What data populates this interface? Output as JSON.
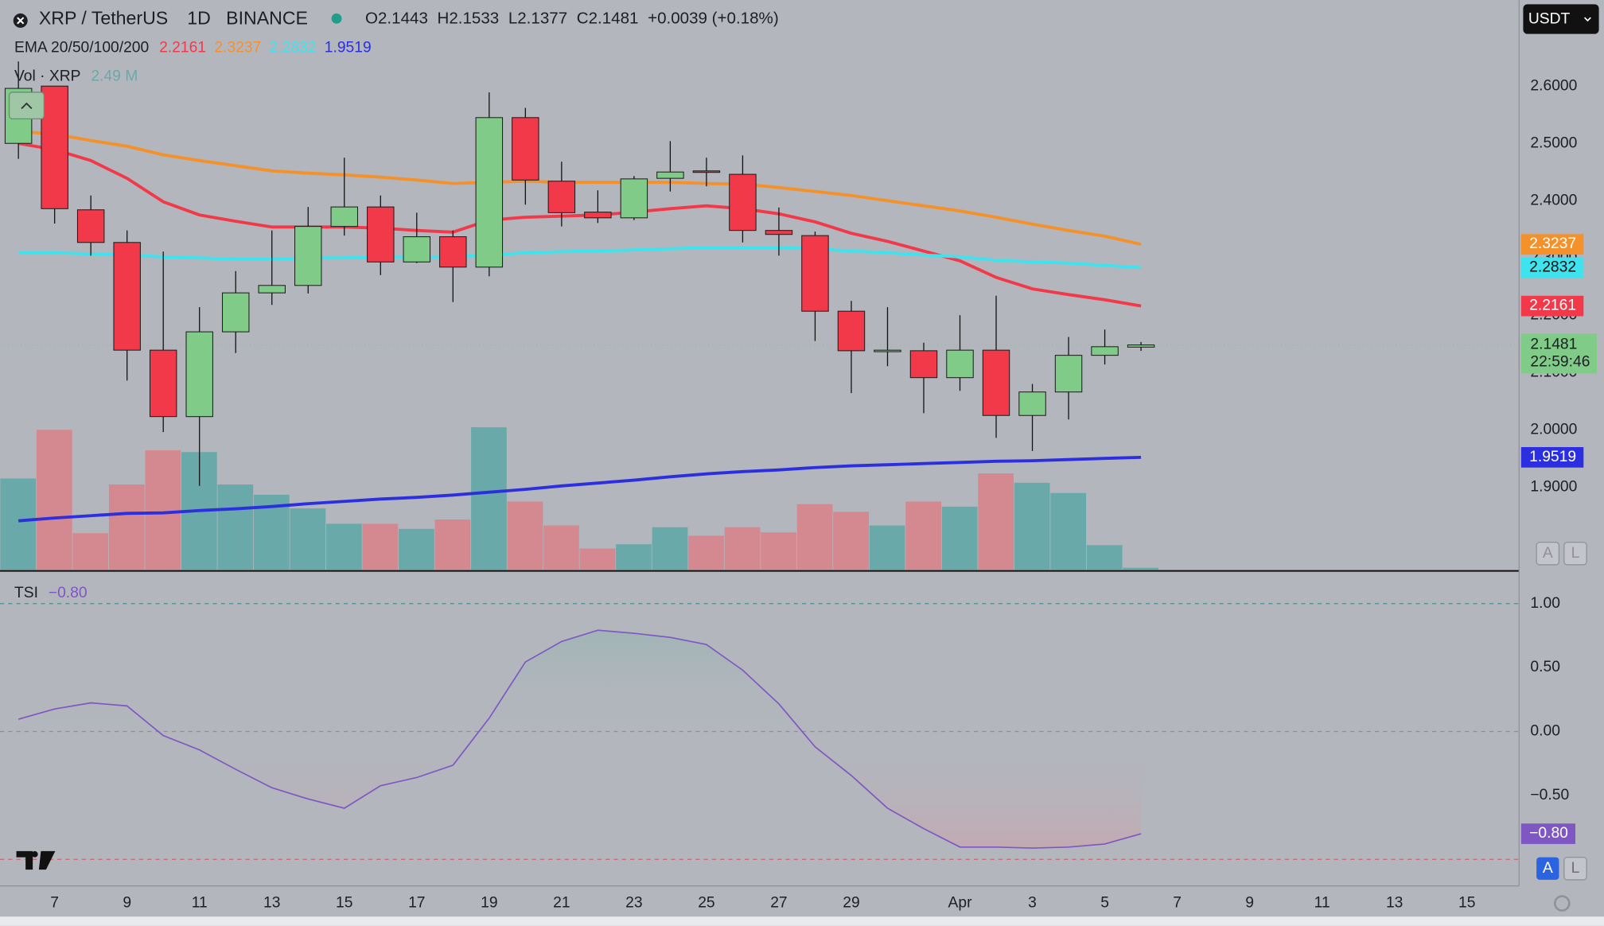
{
  "header": {
    "symbol": "XRP / TetherUS",
    "interval": "1D",
    "exchange": "BINANCE",
    "ohlc_labels": [
      "O",
      "H",
      "L",
      "C"
    ],
    "change": "+0.0039 (+0.18%)",
    "currency": "USDT",
    "countdown": "22:59:46",
    "scale_buttons": [
      "A",
      "L"
    ]
  },
  "chart_data": [
    {
      "type": "candlestick",
      "categories": [
        null,
        "7",
        null,
        "9",
        null,
        "11",
        null,
        "13",
        null,
        "15",
        null,
        "17",
        null,
        "19",
        null,
        "21",
        null,
        "23",
        null,
        "25",
        null,
        "27",
        null,
        "29",
        null,
        null,
        "Apr",
        null,
        "3",
        null,
        "5",
        null,
        "7",
        null,
        "9",
        null,
        "11",
        null,
        "13",
        null,
        "15",
        null
      ],
      "open": [
        2.5,
        2.6,
        2.384,
        2.327,
        2.139,
        2.023,
        2.171,
        2.239,
        2.252,
        2.355,
        2.389,
        2.293,
        2.337,
        2.284,
        2.545,
        2.434,
        2.38,
        2.37,
        2.439,
        2.452,
        2.446,
        2.348,
        2.339,
        2.207,
        2.138,
        2.138,
        2.091,
        2.139,
        2.025,
        2.066,
        2.13,
        2.1443,
        null,
        null,
        null,
        null,
        null,
        null,
        null,
        null,
        null,
        null
      ],
      "high": [
        2.643,
        2.6,
        2.409,
        2.348,
        2.311,
        2.214,
        2.277,
        2.348,
        2.389,
        2.475,
        2.409,
        2.379,
        2.348,
        2.589,
        2.562,
        2.468,
        2.418,
        2.443,
        2.504,
        2.475,
        2.479,
        2.388,
        2.346,
        2.225,
        2.214,
        2.152,
        2.2,
        2.234,
        2.08,
        2.162,
        2.175,
        2.1533,
        null,
        null,
        null,
        null,
        null,
        null,
        null,
        null,
        null,
        null
      ],
      "low": [
        2.473,
        2.36,
        2.304,
        2.086,
        1.996,
        1.902,
        2.134,
        2.218,
        2.238,
        2.339,
        2.27,
        2.291,
        2.223,
        2.268,
        2.393,
        2.355,
        2.361,
        2.366,
        2.416,
        2.425,
        2.327,
        2.304,
        2.155,
        2.064,
        2.111,
        2.029,
        2.068,
        1.986,
        1.963,
        2.018,
        2.114,
        2.1377,
        null,
        null,
        null,
        null,
        null,
        null,
        null,
        null,
        null,
        null
      ],
      "close": [
        2.596,
        2.386,
        2.327,
        2.139,
        2.023,
        2.171,
        2.239,
        2.252,
        2.355,
        2.389,
        2.293,
        2.337,
        2.284,
        2.545,
        2.436,
        2.379,
        2.37,
        2.438,
        2.45,
        2.451,
        2.348,
        2.341,
        2.207,
        2.138,
        2.139,
        2.091,
        2.139,
        2.025,
        2.066,
        2.13,
        2.145,
        2.1481,
        null,
        null,
        null,
        null,
        null,
        null,
        null,
        null,
        null,
        null
      ],
      "up_color": "#7fcb87",
      "down_color": "#f2394a",
      "ylim": [
        1.7554,
        2.75
      ],
      "yticks": [
        {
          "value": 2.6,
          "label": "2.6000"
        },
        {
          "value": 2.5,
          "label": "2.5000"
        },
        {
          "value": 2.4,
          "label": "2.4000"
        },
        {
          "value": 2.3,
          "label": "2.3000"
        },
        {
          "value": 2.2,
          "label": "2.2000"
        },
        {
          "value": 2.1,
          "label": "2.1000"
        },
        {
          "value": 2.0,
          "label": "2.0000"
        },
        {
          "value": 1.9,
          "label": "1.9000"
        }
      ],
      "grid": false,
      "ema": {
        "title": "EMA 20/50/100/200",
        "series": [
          {
            "color": "#f2394a",
            "values": [
              2.5,
              2.489,
              2.47,
              2.439,
              2.398,
              2.375,
              2.364,
              2.354,
              2.354,
              2.354,
              2.352,
              2.348,
              2.345,
              2.366,
              2.371,
              2.373,
              2.375,
              2.38,
              2.386,
              2.391,
              2.386,
              2.377,
              2.363,
              2.343,
              2.329,
              2.312,
              2.295,
              2.266,
              2.246,
              2.236,
              2.227,
              2.2161,
              null,
              null,
              null,
              null,
              null,
              null,
              null,
              null,
              null,
              null
            ]
          },
          {
            "color": "#f5912b",
            "values": [
              2.521,
              2.516,
              2.505,
              2.495,
              2.48,
              2.47,
              2.461,
              2.452,
              2.448,
              2.445,
              2.441,
              2.436,
              2.43,
              2.432,
              2.434,
              2.432,
              2.432,
              2.432,
              2.432,
              2.43,
              2.429,
              2.423,
              2.416,
              2.409,
              2.4,
              2.391,
              2.382,
              2.371,
              2.359,
              2.348,
              2.338,
              2.3237,
              null,
              null,
              null,
              null,
              null,
              null,
              null,
              null,
              null,
              null
            ]
          },
          {
            "color": "#3fe3ee",
            "values": [
              2.309,
              2.309,
              2.307,
              2.305,
              2.302,
              2.3,
              2.298,
              2.298,
              2.3,
              2.3,
              2.302,
              2.302,
              2.302,
              2.305,
              2.309,
              2.311,
              2.312,
              2.314,
              2.316,
              2.318,
              2.318,
              2.318,
              2.316,
              2.312,
              2.309,
              2.305,
              2.302,
              2.296,
              2.293,
              2.291,
              2.287,
              2.2832,
              null,
              null,
              null,
              null,
              null,
              null,
              null,
              null,
              null,
              null
            ]
          },
          {
            "color": "#2b2fe0",
            "values": [
              1.841,
              1.846,
              1.85,
              1.854,
              1.855,
              1.859,
              1.862,
              1.866,
              1.871,
              1.875,
              1.879,
              1.882,
              1.886,
              1.891,
              1.896,
              1.902,
              1.907,
              1.912,
              1.918,
              1.923,
              1.927,
              1.93,
              1.934,
              1.937,
              1.939,
              1.941,
              1.943,
              1.945,
              1.946,
              1.948,
              1.95,
              1.9519,
              null,
              null,
              null,
              null,
              null,
              null,
              null,
              null,
              null,
              null
            ]
          }
        ]
      },
      "volume": {
        "name": "Vol · XRP",
        "legend_value_label": "2.49 M",
        "up_color": "#6aa9a9",
        "down_color": "#d48990",
        "ylim": [
          0,
          400
        ],
        "values": [
          107,
          164,
          43,
          100,
          140,
          138,
          100,
          88,
          72,
          54,
          54,
          48,
          59,
          167,
          80,
          52,
          25,
          30,
          50,
          40,
          50,
          44,
          77,
          68,
          52,
          80,
          74,
          113,
          102,
          90,
          29,
          2.49,
          null,
          null,
          null,
          null,
          null,
          null,
          null,
          null,
          null,
          null
        ]
      }
    },
    {
      "type": "line",
      "title": "TSI",
      "color": "#7e57c2",
      "values": [
        0.096,
        0.176,
        0.224,
        0.2,
        -0.032,
        -0.144,
        -0.296,
        -0.44,
        -0.528,
        -0.6,
        -0.424,
        -0.36,
        -0.264,
        0.104,
        0.544,
        0.704,
        0.792,
        0.768,
        0.736,
        0.68,
        0.48,
        0.216,
        -0.12,
        -0.344,
        -0.6,
        -0.76,
        -0.904,
        -0.904,
        -0.912,
        -0.904,
        -0.88,
        -0.8,
        null,
        null,
        null,
        null,
        null,
        null,
        null,
        null,
        null,
        null
      ],
      "last_value_label": "−0.80",
      "ylim": [
        -1.2,
        1.24
      ],
      "yticks": [
        {
          "value": 1,
          "label": "1.00"
        },
        {
          "value": 0.5,
          "label": "0.50"
        },
        {
          "value": 0,
          "label": "0.00"
        },
        {
          "value": -0.5,
          "label": "−0.50"
        }
      ],
      "hlines": [
        {
          "value": 1,
          "color": "#4d8f8f"
        },
        {
          "value": 0,
          "color": "#8c8f97"
        },
        {
          "value": -1,
          "color": "#d2606a"
        }
      ]
    }
  ]
}
